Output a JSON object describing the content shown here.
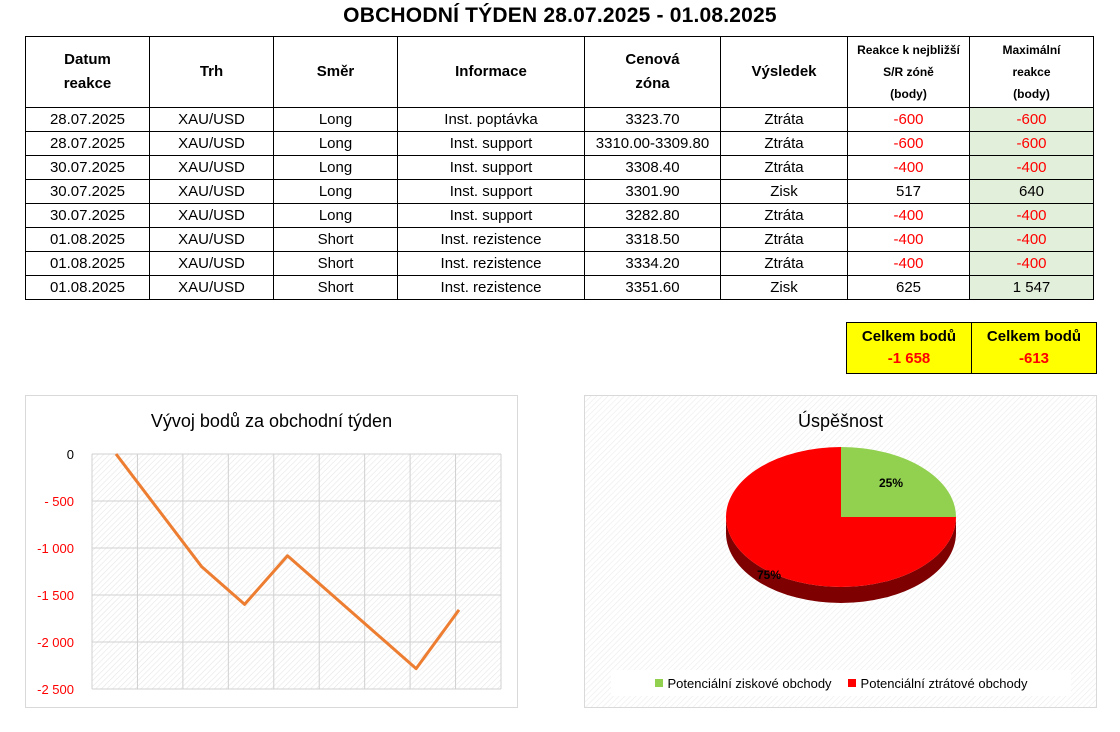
{
  "title": "OBCHODNÍ TÝDEN 28.07.2025 - 01.08.2025",
  "table": {
    "headers": [
      {
        "l1": "Datum",
        "l2": "reakce",
        "l3": ""
      },
      {
        "l1": "Trh",
        "l2": "",
        "l3": ""
      },
      {
        "l1": "Směr",
        "l2": "",
        "l3": ""
      },
      {
        "l1": "Informace",
        "l2": "",
        "l3": ""
      },
      {
        "l1": "Cenová",
        "l2": "zóna",
        "l3": ""
      },
      {
        "l1": "Výsledek",
        "l2": "",
        "l3": ""
      },
      {
        "l1": "Reakce k nejbližší",
        "l2": "S/R zóně",
        "l3": "(body)"
      },
      {
        "l1": "Maximální",
        "l2": "reakce",
        "l3": "(body)"
      }
    ],
    "rows": [
      {
        "date": "28.07.2025",
        "market": "XAU/USD",
        "direction": "Long",
        "info": "Inst. poptávka",
        "zone": "3323.70",
        "result": "Ztráta",
        "reaction": "-600",
        "max": "-600"
      },
      {
        "date": "28.07.2025",
        "market": "XAU/USD",
        "direction": "Long",
        "info": "Inst. support",
        "zone": "3310.00-3309.80",
        "result": "Ztráta",
        "reaction": "-600",
        "max": "-600"
      },
      {
        "date": "30.07.2025",
        "market": "XAU/USD",
        "direction": "Long",
        "info": "Inst. support",
        "zone": "3308.40",
        "result": "Ztráta",
        "reaction": "-400",
        "max": "-400"
      },
      {
        "date": "30.07.2025",
        "market": "XAU/USD",
        "direction": "Long",
        "info": "Inst. support",
        "zone": "3301.90",
        "result": "Zisk",
        "reaction": "517",
        "max": "640"
      },
      {
        "date": "30.07.2025",
        "market": "XAU/USD",
        "direction": "Long",
        "info": "Inst. support",
        "zone": "3282.80",
        "result": "Ztráta",
        "reaction": "-400",
        "max": "-400"
      },
      {
        "date": "01.08.2025",
        "market": "XAU/USD",
        "direction": "Short",
        "info": "Inst. rezistence",
        "zone": "3318.50",
        "result": "Ztráta",
        "reaction": "-400",
        "max": "-400"
      },
      {
        "date": "01.08.2025",
        "market": "XAU/USD",
        "direction": "Short",
        "info": "Inst. rezistence",
        "zone": "3334.20",
        "result": "Ztráta",
        "reaction": "-400",
        "max": "-400"
      },
      {
        "date": "01.08.2025",
        "market": "XAU/USD",
        "direction": "Short",
        "info": "Inst. rezistence",
        "zone": "3351.60",
        "result": "Zisk",
        "reaction": "625",
        "max": "1 547"
      }
    ]
  },
  "totals": [
    {
      "label": "Celkem bodů",
      "value": "-1 658"
    },
    {
      "label": "Celkem bodů",
      "value": "-613"
    }
  ],
  "colors": {
    "negative": "#ff0000",
    "highlight_green": "#e2efda",
    "totals_bg": "#ffff00",
    "line": "#ed7d31",
    "pie_win": "#92d050",
    "pie_loss": "#ff0000",
    "pie_loss_side": "#7f0000"
  },
  "chart_data": [
    {
      "type": "line",
      "title": "Vývoj bodů za obchodní týden",
      "xlabel": "",
      "ylabel": "",
      "ylim": [
        -2500,
        0
      ],
      "yticks": [
        "0",
        "- 500",
        "-1 000",
        "-1 500",
        "-2 000",
        "-2 500"
      ],
      "ytick_values": [
        0,
        -500,
        -1000,
        -1500,
        -2000,
        -2500
      ],
      "grid": true,
      "series": [
        {
          "values": [
            0,
            -600,
            -1200,
            -1600,
            -1083,
            -1483,
            -1883,
            -2283,
            -1658
          ]
        }
      ]
    },
    {
      "type": "pie",
      "title": "Úspěšnost",
      "slices": [
        {
          "label": "Potenciální ziskové obchody",
          "value": 25,
          "display": "25%"
        },
        {
          "label": "Potenciální ztrátové obchody",
          "value": 75,
          "display": "75%"
        }
      ],
      "legend_position": "bottom"
    }
  ]
}
